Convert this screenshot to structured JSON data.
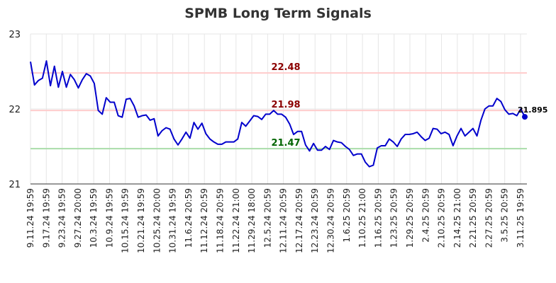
{
  "chart_data": {
    "type": "line",
    "title": "SPMB Long Term Signals",
    "xlabel": "",
    "ylabel": "",
    "ylim": [
      21,
      23
    ],
    "yticks": [
      "21",
      "22",
      "23"
    ],
    "grid": true,
    "x_tick_labels": [
      "9.11.24 19:59",
      "9.17.24 19:59",
      "9.23.24 19:59",
      "9.27.24 20:00",
      "10.3.24 19:59",
      "10.9.24 19:59",
      "10.15.24 19:59",
      "10.21.24 19:59",
      "10.25.24 20:00",
      "10.31.24 19:59",
      "11.6.24 20:59",
      "11.12.24 20:59",
      "11.18.24 20:59",
      "11.22.24 21:00",
      "11.29.24 18:00",
      "12.5.24 20:59",
      "12.11.24 20:59",
      "12.17.24 20:59",
      "12.23.24 20:59",
      "12.30.24 20:59",
      "1.6.25 20:59",
      "1.10.25 21:00",
      "1.16.25 20:59",
      "1.23.25 20:59",
      "1.29.25 20:59",
      "2.4.25 20:59",
      "2.10.25 20:59",
      "2.14.25 21:00",
      "2.21.25 20:59",
      "2.27.25 20:59",
      "3.5.25 20:59",
      "3.11.25 19:59"
    ],
    "levels": [
      {
        "value": 22.48,
        "label": "22.48",
        "line_color": "#ffcccc",
        "label_color": "#8b0000"
      },
      {
        "value": 21.98,
        "label": "21.98",
        "line_color": "#ffcccc",
        "label_color": "#8b0000"
      },
      {
        "value": 21.47,
        "label": "21.47",
        "line_color": "#aaddaa",
        "label_color": "#006400"
      }
    ],
    "series": [
      {
        "color": "#0000cc",
        "values": [
          22.63,
          22.32,
          22.38,
          22.41,
          22.64,
          22.31,
          22.57,
          22.29,
          22.5,
          22.29,
          22.46,
          22.39,
          22.28,
          22.39,
          22.47,
          22.44,
          22.34,
          21.98,
          21.93,
          22.15,
          22.09,
          22.09,
          21.91,
          21.89,
          22.13,
          22.14,
          22.04,
          21.89,
          21.91,
          21.92,
          21.85,
          21.87,
          21.64,
          21.71,
          21.75,
          21.73,
          21.6,
          21.52,
          21.6,
          21.69,
          21.61,
          21.82,
          21.73,
          21.81,
          21.67,
          21.6,
          21.56,
          21.53,
          21.53,
          21.56,
          21.56,
          21.56,
          21.6,
          21.82,
          21.77,
          21.84,
          21.91,
          21.9,
          21.86,
          21.93,
          21.93,
          21.98,
          21.93,
          21.93,
          21.89,
          21.8,
          21.66,
          21.7,
          21.7,
          21.52,
          21.44,
          21.54,
          21.45,
          21.45,
          21.5,
          21.46,
          21.58,
          21.56,
          21.55,
          21.5,
          21.46,
          21.38,
          21.4,
          21.4,
          21.29,
          21.23,
          21.25,
          21.48,
          21.51,
          21.51,
          21.6,
          21.56,
          21.5,
          21.6,
          21.66,
          21.66,
          21.67,
          21.69,
          21.63,
          21.58,
          21.61,
          21.74,
          21.73,
          21.67,
          21.69,
          21.66,
          21.51,
          21.64,
          21.74,
          21.64,
          21.69,
          21.74,
          21.64,
          21.85,
          22.0,
          22.04,
          22.04,
          22.14,
          22.1,
          21.99,
          21.93,
          21.94,
          21.91,
          22.0,
          21.895
        ]
      }
    ],
    "last_value_label": "21.895"
  }
}
